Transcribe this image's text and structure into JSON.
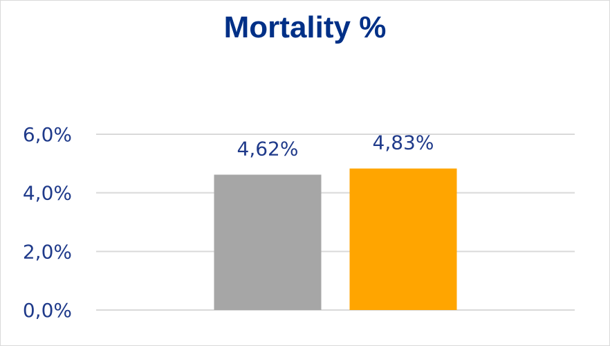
{
  "chart_data": {
    "type": "bar",
    "title": "Mortality %",
    "categories": [
      "",
      ""
    ],
    "values": [
      4.62,
      4.83
    ],
    "value_labels": [
      "4,62%",
      "4,83%"
    ],
    "colors": [
      "#a6a6a6",
      "#ffa500"
    ],
    "ylim": [
      0,
      6
    ],
    "yticks": [
      {
        "value": 0,
        "label": "0,0%"
      },
      {
        "value": 2,
        "label": "2,0%"
      },
      {
        "value": 4,
        "label": "4,0%"
      },
      {
        "value": 6,
        "label": "6,0%"
      }
    ],
    "grid": true,
    "legend": "none",
    "xlabel": "",
    "ylabel": ""
  }
}
